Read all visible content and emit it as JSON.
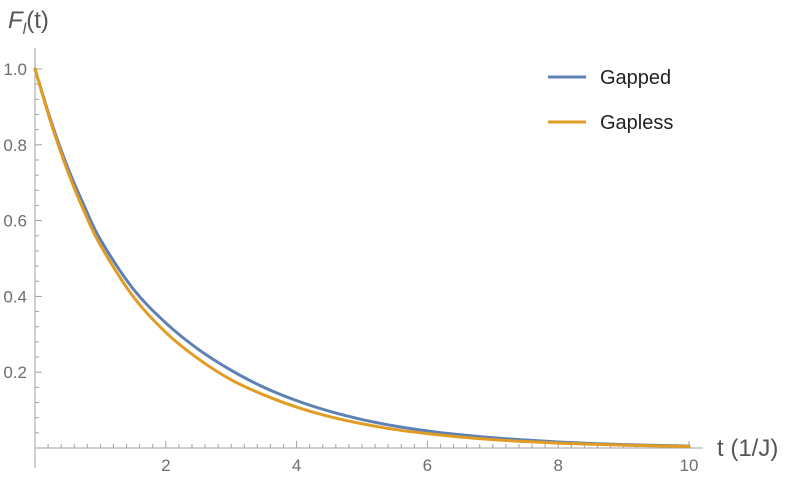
{
  "chart_data": {
    "type": "line",
    "ylabel_main": "F",
    "ylabel_sub": "l",
    "ylabel_tail": "(t)",
    "xlabel": "t (1/J)",
    "xlim": [
      0,
      10
    ],
    "ylim": [
      0,
      1.05
    ],
    "x_ticks": [
      2,
      4,
      6,
      8,
      10
    ],
    "x_tick_labels": [
      "2",
      "4",
      "6",
      "8",
      "10"
    ],
    "y_ticks": [
      0.2,
      0.4,
      0.6,
      0.8,
      1.0
    ],
    "y_tick_labels": [
      "0.2",
      "0.4",
      "0.6",
      "0.8",
      "1.0"
    ],
    "legend_position": "top-right",
    "grid": false,
    "series": [
      {
        "name": "Gapped",
        "color": "#5e81b5",
        "x": [
          0,
          0.25,
          0.5,
          0.75,
          1,
          1.5,
          2,
          2.5,
          3,
          3.5,
          4,
          4.5,
          5,
          5.5,
          6,
          6.5,
          7,
          7.5,
          8,
          8.5,
          9,
          9.5,
          10
        ],
        "y": [
          1.0,
          0.86,
          0.74,
          0.64,
          0.55,
          0.42,
          0.33,
          0.26,
          0.205,
          0.16,
          0.125,
          0.097,
          0.075,
          0.058,
          0.045,
          0.035,
          0.027,
          0.021,
          0.016,
          0.012,
          0.009,
          0.007,
          0.005
        ]
      },
      {
        "name": "Gapless",
        "color": "#e19c24",
        "x": [
          0,
          0.25,
          0.5,
          0.75,
          1,
          1.5,
          2,
          2.5,
          3,
          3.5,
          4,
          4.5,
          5,
          5.5,
          6,
          6.5,
          7,
          7.5,
          8,
          8.5,
          9,
          9.5,
          10
        ],
        "y": [
          1.0,
          0.855,
          0.73,
          0.625,
          0.535,
          0.4,
          0.305,
          0.235,
          0.18,
          0.14,
          0.108,
          0.083,
          0.064,
          0.049,
          0.038,
          0.029,
          0.022,
          0.017,
          0.013,
          0.01,
          0.0075,
          0.0055,
          0.004
        ]
      }
    ]
  }
}
